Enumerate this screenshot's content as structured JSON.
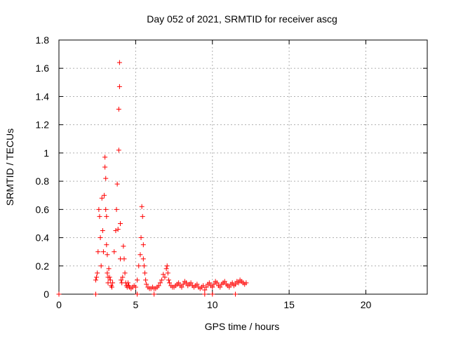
{
  "chart_data": {
    "type": "scatter",
    "title": "Day 052 of 2021, SRMTID for receiver ascg",
    "xlabel": "GPS time / hours",
    "ylabel": "SRMTID / TECUs",
    "xlim": [
      0,
      24
    ],
    "ylim": [
      0,
      1.8
    ],
    "xticks": [
      0,
      5,
      10,
      15,
      20
    ],
    "xtick_labels": [
      "0",
      "5",
      "10",
      "15",
      "20"
    ],
    "yticks": [
      0,
      0.2,
      0.4,
      0.6,
      0.8,
      1.0,
      1.2,
      1.4,
      1.6,
      1.8
    ],
    "ytick_labels": [
      "0",
      "0.2",
      "0.4",
      "0.6",
      "0.8",
      "1",
      "1.2",
      "1.4",
      "1.6",
      "1.8"
    ],
    "grid": true,
    "marker": "+",
    "series": [
      {
        "name": "SRMTID",
        "color": "#ff0000",
        "x": [
          0.0,
          2.4,
          2.45,
          2.5,
          2.55,
          2.6,
          2.65,
          2.7,
          2.75,
          2.8,
          2.85,
          2.9,
          2.95,
          3.0,
          3.0,
          3.05,
          3.05,
          3.1,
          3.1,
          3.15,
          3.15,
          3.2,
          3.2,
          3.25,
          3.3,
          3.35,
          3.4,
          3.45,
          3.5,
          3.6,
          3.7,
          3.75,
          3.8,
          3.85,
          3.9,
          3.9,
          3.95,
          3.95,
          4.0,
          4.0,
          4.05,
          4.1,
          4.15,
          4.2,
          4.25,
          4.3,
          4.35,
          4.4,
          4.45,
          4.5,
          4.55,
          4.6,
          4.7,
          4.8,
          4.9,
          5.0,
          5.1,
          5.2,
          5.3,
          5.35,
          5.4,
          5.45,
          5.5,
          5.5,
          5.55,
          5.6,
          5.65,
          5.7,
          5.8,
          5.9,
          6.0,
          6.1,
          6.2,
          6.3,
          6.4,
          6.5,
          6.6,
          6.7,
          6.8,
          6.9,
          7.0,
          7.05,
          7.1,
          7.15,
          7.2,
          7.3,
          7.4,
          7.5,
          7.6,
          7.7,
          7.8,
          7.9,
          8.0,
          8.1,
          8.2,
          8.3,
          8.4,
          8.5,
          8.6,
          8.7,
          8.8,
          8.9,
          9.0,
          9.1,
          9.2,
          9.3,
          9.4,
          9.5,
          9.6,
          9.7,
          9.8,
          9.9,
          10.0,
          10.1,
          10.2,
          10.3,
          10.4,
          10.5,
          10.6,
          10.7,
          10.8,
          10.9,
          11.0,
          11.1,
          11.2,
          11.3,
          11.4,
          11.5,
          11.6,
          11.7,
          11.8,
          11.9,
          12.0,
          12.1,
          12.2,
          2.4,
          5.1,
          6.2,
          9.5,
          10.0,
          11.5
        ],
        "y": [
          0.0,
          0.1,
          0.12,
          0.15,
          0.3,
          0.6,
          0.55,
          0.4,
          0.2,
          0.68,
          0.45,
          0.3,
          0.7,
          0.9,
          0.97,
          0.82,
          0.6,
          0.55,
          0.35,
          0.28,
          0.15,
          0.12,
          0.08,
          0.18,
          0.12,
          0.1,
          0.06,
          0.05,
          0.08,
          0.3,
          0.45,
          0.6,
          0.78,
          0.46,
          1.02,
          1.31,
          1.47,
          1.64,
          0.5,
          0.25,
          0.1,
          0.08,
          0.12,
          0.34,
          0.25,
          0.15,
          0.08,
          0.06,
          0.05,
          0.08,
          0.06,
          0.05,
          0.04,
          0.05,
          0.06,
          0.05,
          0.1,
          0.2,
          0.28,
          0.4,
          0.62,
          0.55,
          0.35,
          0.25,
          0.2,
          0.15,
          0.1,
          0.07,
          0.05,
          0.04,
          0.04,
          0.05,
          0.04,
          0.04,
          0.05,
          0.06,
          0.08,
          0.1,
          0.14,
          0.12,
          0.18,
          0.2,
          0.15,
          0.1,
          0.08,
          0.06,
          0.05,
          0.05,
          0.06,
          0.07,
          0.08,
          0.06,
          0.05,
          0.07,
          0.09,
          0.08,
          0.06,
          0.07,
          0.08,
          0.06,
          0.05,
          0.06,
          0.07,
          0.05,
          0.04,
          0.05,
          0.06,
          0.03,
          0.05,
          0.07,
          0.08,
          0.06,
          0.05,
          0.07,
          0.09,
          0.08,
          0.06,
          0.05,
          0.07,
          0.08,
          0.09,
          0.07,
          0.06,
          0.05,
          0.07,
          0.08,
          0.06,
          0.07,
          0.09,
          0.08,
          0.1,
          0.09,
          0.08,
          0.07,
          0.08,
          0.0,
          0.0,
          0.0,
          0.0,
          0.0,
          0.0
        ]
      }
    ]
  }
}
